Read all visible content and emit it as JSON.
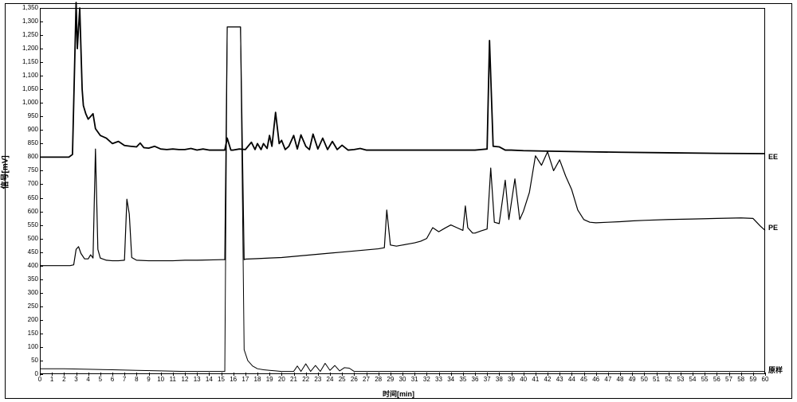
{
  "chart": {
    "type": "line",
    "xlabel": "时间[min]",
    "ylabel": "信号[mV]",
    "xlim": [
      0,
      60
    ],
    "ylim": [
      0,
      1350
    ],
    "ytick_step": 50,
    "xtick_step": 1,
    "background_color": "#ffffff",
    "border_color": "#000000",
    "axis_fontsize": 9,
    "tick_fontsize": 8,
    "series": [
      {
        "name": "EE",
        "label": "EE",
        "color": "#000000",
        "line_width": 1.8,
        "label_y": 800,
        "data": [
          [
            0,
            800
          ],
          [
            1.5,
            800
          ],
          [
            2,
            800
          ],
          [
            2.2,
            800
          ],
          [
            2.4,
            800
          ],
          [
            2.7,
            810
          ],
          [
            3,
            1370
          ],
          [
            3.1,
            1200
          ],
          [
            3.3,
            1350
          ],
          [
            3.5,
            1050
          ],
          [
            3.6,
            990
          ],
          [
            3.8,
            960
          ],
          [
            4,
            940
          ],
          [
            4.2,
            950
          ],
          [
            4.4,
            960
          ],
          [
            4.6,
            905
          ],
          [
            5,
            880
          ],
          [
            5.5,
            870
          ],
          [
            6,
            850
          ],
          [
            6.5,
            858
          ],
          [
            7,
            843
          ],
          [
            7.5,
            840
          ],
          [
            8,
            838
          ],
          [
            8.3,
            852
          ],
          [
            8.6,
            835
          ],
          [
            9,
            833
          ],
          [
            9.5,
            840
          ],
          [
            10,
            830
          ],
          [
            10.5,
            828
          ],
          [
            11,
            830
          ],
          [
            11.5,
            828
          ],
          [
            12,
            828
          ],
          [
            12.5,
            832
          ],
          [
            13,
            826
          ],
          [
            13.5,
            830
          ],
          [
            14,
            826
          ],
          [
            14.5,
            826
          ],
          [
            15,
            826
          ],
          [
            15.3,
            826
          ],
          [
            15.5,
            870
          ],
          [
            15.8,
            826
          ],
          [
            16,
            826
          ],
          [
            16.5,
            830
          ],
          [
            17,
            828
          ],
          [
            17.5,
            855
          ],
          [
            17.8,
            828
          ],
          [
            18,
            850
          ],
          [
            18.3,
            828
          ],
          [
            18.5,
            850
          ],
          [
            18.8,
            832
          ],
          [
            19,
            880
          ],
          [
            19.2,
            840
          ],
          [
            19.5,
            965
          ],
          [
            19.8,
            850
          ],
          [
            20,
            862
          ],
          [
            20.3,
            828
          ],
          [
            20.6,
            840
          ],
          [
            21,
            880
          ],
          [
            21.3,
            830
          ],
          [
            21.6,
            882
          ],
          [
            22,
            840
          ],
          [
            22.3,
            828
          ],
          [
            22.6,
            885
          ],
          [
            23,
            830
          ],
          [
            23.4,
            870
          ],
          [
            23.8,
            828
          ],
          [
            24.2,
            858
          ],
          [
            24.6,
            828
          ],
          [
            25,
            844
          ],
          [
            25.5,
            826
          ],
          [
            26,
            828
          ],
          [
            26.5,
            832
          ],
          [
            27,
            826
          ],
          [
            27.5,
            826
          ],
          [
            28,
            826
          ],
          [
            28.5,
            826
          ],
          [
            29,
            826
          ],
          [
            29.5,
            826
          ],
          [
            30,
            826
          ],
          [
            30.5,
            826
          ],
          [
            31,
            826
          ],
          [
            31.5,
            826
          ],
          [
            32,
            826
          ],
          [
            32.5,
            826
          ],
          [
            33,
            826
          ],
          [
            33.5,
            826
          ],
          [
            34,
            826
          ],
          [
            34.5,
            826
          ],
          [
            35,
            826
          ],
          [
            35.5,
            826
          ],
          [
            36,
            826
          ],
          [
            36.5,
            828
          ],
          [
            37,
            830
          ],
          [
            37.2,
            1230
          ],
          [
            37.5,
            840
          ],
          [
            38,
            838
          ],
          [
            38.5,
            826
          ],
          [
            39,
            826
          ],
          [
            40,
            824
          ],
          [
            42,
            822
          ],
          [
            45,
            820
          ],
          [
            48,
            818
          ],
          [
            52,
            816
          ],
          [
            56,
            814
          ],
          [
            60,
            813
          ]
        ]
      },
      {
        "name": "PE",
        "label": "PE",
        "color": "#000000",
        "line_width": 1.2,
        "label_y": 540,
        "data": [
          [
            0,
            400
          ],
          [
            1.5,
            400
          ],
          [
            2,
            400
          ],
          [
            2.2,
            400
          ],
          [
            2.5,
            400
          ],
          [
            2.8,
            403
          ],
          [
            3,
            460
          ],
          [
            3.2,
            470
          ],
          [
            3.4,
            445
          ],
          [
            3.7,
            425
          ],
          [
            4,
            425
          ],
          [
            4.2,
            440
          ],
          [
            4.4,
            428
          ],
          [
            4.6,
            830
          ],
          [
            4.8,
            460
          ],
          [
            5,
            428
          ],
          [
            5.5,
            420
          ],
          [
            6,
            418
          ],
          [
            6.5,
            418
          ],
          [
            7,
            420
          ],
          [
            7.2,
            645
          ],
          [
            7.4,
            590
          ],
          [
            7.6,
            430
          ],
          [
            8,
            420
          ],
          [
            9,
            418
          ],
          [
            10,
            418
          ],
          [
            11,
            418
          ],
          [
            12,
            420
          ],
          [
            13,
            420
          ],
          [
            14,
            421
          ],
          [
            15,
            422
          ],
          [
            15.3,
            422
          ],
          [
            15.5,
            1280
          ],
          [
            16.6,
            1280
          ],
          [
            16.9,
            422
          ],
          [
            17,
            424
          ],
          [
            18,
            426
          ],
          [
            19,
            428
          ],
          [
            20,
            430
          ],
          [
            21,
            434
          ],
          [
            22,
            438
          ],
          [
            23,
            442
          ],
          [
            24,
            446
          ],
          [
            25,
            450
          ],
          [
            26,
            454
          ],
          [
            27,
            458
          ],
          [
            28,
            462
          ],
          [
            28.5,
            466
          ],
          [
            28.7,
            605
          ],
          [
            29,
            476
          ],
          [
            29.5,
            472
          ],
          [
            30,
            476
          ],
          [
            30.5,
            480
          ],
          [
            31,
            484
          ],
          [
            31.5,
            490
          ],
          [
            32,
            500
          ],
          [
            32.5,
            540
          ],
          [
            33,
            525
          ],
          [
            33.5,
            538
          ],
          [
            34,
            550
          ],
          [
            34.5,
            540
          ],
          [
            35,
            530
          ],
          [
            35.2,
            620
          ],
          [
            35.4,
            540
          ],
          [
            35.8,
            520
          ],
          [
            36,
            520
          ],
          [
            36.5,
            528
          ],
          [
            37,
            535
          ],
          [
            37.3,
            760
          ],
          [
            37.6,
            560
          ],
          [
            38,
            555
          ],
          [
            38.5,
            715
          ],
          [
            38.8,
            570
          ],
          [
            39.3,
            720
          ],
          [
            39.7,
            570
          ],
          [
            40,
            600
          ],
          [
            40.5,
            670
          ],
          [
            41,
            805
          ],
          [
            41.5,
            770
          ],
          [
            42,
            820
          ],
          [
            42.5,
            750
          ],
          [
            43,
            790
          ],
          [
            43.5,
            730
          ],
          [
            44,
            680
          ],
          [
            44.5,
            605
          ],
          [
            45,
            570
          ],
          [
            45.5,
            560
          ],
          [
            46,
            558
          ],
          [
            47,
            560
          ],
          [
            48,
            562
          ],
          [
            49,
            565
          ],
          [
            50,
            567
          ],
          [
            52,
            570
          ],
          [
            54,
            572
          ],
          [
            56,
            574
          ],
          [
            58,
            576
          ],
          [
            59,
            574
          ],
          [
            59.6,
            546
          ],
          [
            60,
            530
          ]
        ]
      },
      {
        "name": "raw",
        "label": "原样",
        "color": "#000000",
        "line_width": 1.0,
        "label_y": 20,
        "data": [
          [
            0,
            20
          ],
          [
            2,
            20
          ],
          [
            4,
            18
          ],
          [
            6,
            16
          ],
          [
            8,
            14
          ],
          [
            10,
            12
          ],
          [
            12,
            10
          ],
          [
            14,
            10
          ],
          [
            15,
            10
          ],
          [
            15.3,
            10
          ],
          [
            15.5,
            1280
          ],
          [
            16.6,
            1280
          ],
          [
            16.9,
            90
          ],
          [
            17.2,
            50
          ],
          [
            17.6,
            30
          ],
          [
            18,
            20
          ],
          [
            18.5,
            16
          ],
          [
            19,
            14
          ],
          [
            19.5,
            12
          ],
          [
            20,
            10
          ],
          [
            20.5,
            10
          ],
          [
            21,
            10
          ],
          [
            21.3,
            30
          ],
          [
            21.6,
            10
          ],
          [
            22,
            38
          ],
          [
            22.4,
            10
          ],
          [
            22.8,
            32
          ],
          [
            23.2,
            10
          ],
          [
            23.6,
            40
          ],
          [
            24,
            14
          ],
          [
            24.4,
            32
          ],
          [
            24.8,
            12
          ],
          [
            25.2,
            24
          ],
          [
            25.6,
            22
          ],
          [
            26,
            10
          ],
          [
            27,
            10
          ],
          [
            28,
            10
          ],
          [
            29,
            10
          ],
          [
            30,
            10
          ],
          [
            32,
            10
          ],
          [
            34,
            10
          ],
          [
            36,
            10
          ],
          [
            38,
            10
          ],
          [
            40,
            10
          ],
          [
            42,
            10
          ],
          [
            44,
            10
          ],
          [
            46,
            10
          ],
          [
            48,
            10
          ],
          [
            50,
            10
          ],
          [
            52,
            10
          ],
          [
            54,
            10
          ],
          [
            56,
            10
          ],
          [
            58,
            10
          ],
          [
            60,
            10
          ]
        ]
      }
    ]
  }
}
